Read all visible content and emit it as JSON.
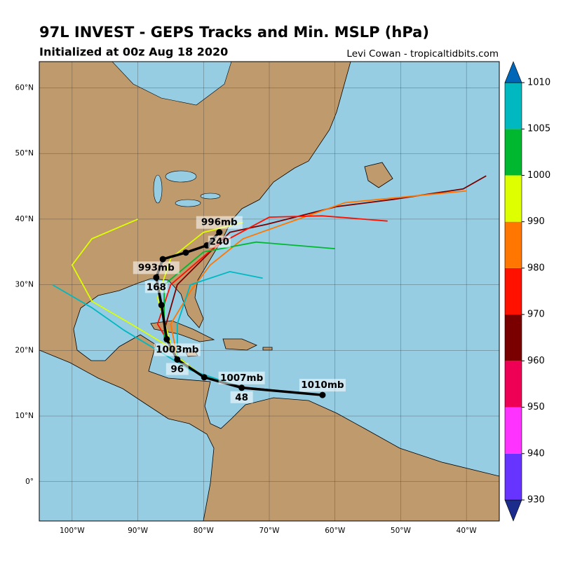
{
  "header": {
    "title": "97L INVEST - GEPS Tracks and Min. MSLP (hPa)",
    "subtitle": "Initialized at 00z Aug 18 2020",
    "credit": "Levi Cowan - tropicaltidbits.com"
  },
  "map": {
    "lonlim": [
      -105,
      -35
    ],
    "latlim": [
      -6,
      64
    ],
    "lat_ticks": [
      {
        "value": 0,
        "label": "0°"
      },
      {
        "value": 10,
        "label": "10°N"
      },
      {
        "value": 20,
        "label": "20°N"
      },
      {
        "value": 30,
        "label": "30°N"
      },
      {
        "value": 40,
        "label": "40°N"
      },
      {
        "value": 50,
        "label": "50°N"
      },
      {
        "value": 60,
        "label": "60°N"
      }
    ],
    "lon_ticks": [
      {
        "value": -100,
        "label": "100°W"
      },
      {
        "value": -90,
        "label": "90°W"
      },
      {
        "value": -80,
        "label": "80°W"
      },
      {
        "value": -70,
        "label": "70°W"
      },
      {
        "value": -60,
        "label": "60°W"
      },
      {
        "value": -50,
        "label": "50°W"
      },
      {
        "value": -40,
        "label": "40°W"
      }
    ]
  },
  "colorbar": {
    "ticks": [
      930,
      940,
      950,
      960,
      970,
      980,
      990,
      1000,
      1005,
      1010
    ],
    "colors": [
      "#1c2c8c",
      "#6633ff",
      "#ff33ff",
      "#ee0055",
      "#7a0000",
      "#ff1100",
      "#ff7700",
      "#ddff00",
      "#00b830",
      "#00b8c0",
      "#0066b8"
    ]
  },
  "members": [
    {
      "color": "#7a0000",
      "lon": [
        -61.9,
        -74,
        -80,
        -84,
        -86,
        -84,
        -80,
        -76,
        -70.4,
        -59.8,
        -51.2,
        -40.5,
        -37
      ],
      "lat": [
        13.2,
        14.4,
        16,
        19,
        23,
        30,
        34,
        38,
        39.2,
        41.9,
        43,
        44.6,
        46.6
      ]
    },
    {
      "color": "#ff7700",
      "lon": [
        -61.9,
        -74,
        -80,
        -84,
        -85,
        -82,
        -79,
        -74,
        -67,
        -58.5,
        -40
      ],
      "lat": [
        13.2,
        14.3,
        16,
        19,
        24,
        29,
        33,
        37,
        39.5,
        42.5,
        44.3
      ]
    },
    {
      "color": "#ff1100",
      "lon": [
        -61.9,
        -74,
        -80,
        -84,
        -87,
        -85,
        -78,
        -70,
        -62,
        -52
      ],
      "lat": [
        13.2,
        14.2,
        16,
        19,
        24,
        30,
        36,
        40.3,
        40.5,
        39.7
      ]
    },
    {
      "color": "#00b830",
      "lon": [
        -61.9,
        -74,
        -80,
        -84,
        -86,
        -86,
        -80,
        -72,
        -60
      ],
      "lat": [
        13.2,
        14.3,
        16,
        19,
        22,
        30,
        35,
        36.5,
        35.5
      ]
    },
    {
      "color": "#00b8c0",
      "lon": [
        -61.9,
        -74,
        -82,
        -87,
        -92,
        -97,
        -103
      ],
      "lat": [
        13.2,
        14.3,
        17,
        20,
        23,
        26.5,
        30
      ]
    },
    {
      "color": "#ddff00",
      "lon": [
        -61.9,
        -74,
        -80,
        -84,
        -86,
        -91,
        -97,
        -100,
        -97,
        -90
      ],
      "lat": [
        13.2,
        14.3,
        16,
        19,
        21,
        24,
        27.5,
        33,
        37,
        40
      ]
    },
    {
      "color": "#00b8c0",
      "lon": [
        -61.9,
        -74,
        -80,
        -84,
        -84,
        -82,
        -76,
        -71
      ],
      "lat": [
        13.2,
        14.3,
        16,
        19,
        24,
        30,
        32,
        31
      ]
    },
    {
      "color": "#ddff00",
      "lon": [
        -61.9,
        -74,
        -80,
        -84,
        -85,
        -87,
        -85,
        -80,
        -74
      ],
      "lat": [
        13.2,
        14.3,
        16,
        19,
        21,
        28,
        34,
        38,
        39.5
      ]
    }
  ],
  "mean_track": {
    "lon": [
      -61.9,
      -74.2,
      -79.9,
      -84.0,
      -85.6,
      -86.4,
      -87.2,
      -86.2,
      -82.7,
      -79.5,
      -77.6
    ],
    "lat": [
      13.2,
      14.3,
      15.9,
      18.6,
      21.7,
      26.9,
      31.1,
      33.9,
      34.9,
      36.0,
      38.0
    ],
    "labels": [
      "1010mb",
      "1007mb",
      null,
      "1003mb",
      null,
      null,
      "993mb",
      null,
      null,
      null,
      "996mb"
    ],
    "hours": [
      null,
      "48",
      null,
      "96",
      null,
      null,
      "168",
      null,
      null,
      null,
      "240"
    ]
  }
}
